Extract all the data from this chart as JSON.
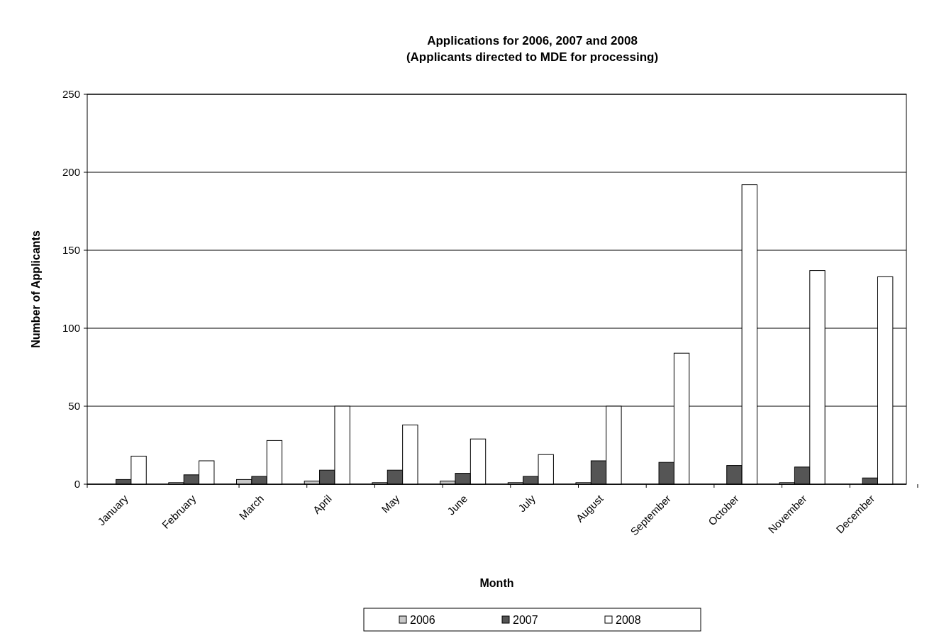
{
  "chart_data": {
    "type": "bar",
    "title": "Applications for 2006, 2007 and 2008",
    "subtitle": "(Applicants directed to MDE for processing)",
    "xlabel": "Month",
    "ylabel": "Number of Applicants",
    "categories": [
      "January",
      "February",
      "March",
      "April",
      "May",
      "June",
      "July",
      "August",
      "September",
      "October",
      "November",
      "December"
    ],
    "series": [
      {
        "name": "2006",
        "color": "#c8c8c8",
        "values": [
          0,
          1,
          3,
          2,
          1,
          2,
          1,
          1,
          0,
          0,
          1,
          0
        ]
      },
      {
        "name": "2007",
        "color": "#555555",
        "values": [
          3,
          6,
          5,
          9,
          9,
          7,
          5,
          15,
          14,
          12,
          11,
          4
        ]
      },
      {
        "name": "2008",
        "color": "#ffffff",
        "values": [
          18,
          15,
          28,
          50,
          38,
          29,
          19,
          50,
          84,
          192,
          137,
          133
        ]
      }
    ],
    "ylim": [
      0,
      250
    ],
    "yticks": [
      0,
      50,
      100,
      150,
      200,
      250
    ],
    "grid": "y",
    "legend": "bottom"
  }
}
